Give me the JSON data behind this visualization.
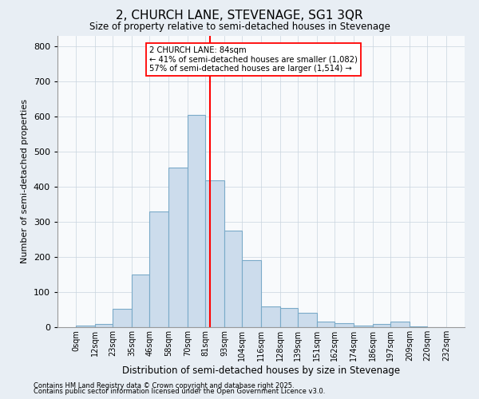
{
  "title": "2, CHURCH LANE, STEVENAGE, SG1 3QR",
  "subtitle": "Size of property relative to semi-detached houses in Stevenage",
  "xlabel": "Distribution of semi-detached houses by size in Stevenage",
  "ylabel": "Number of semi-detached properties",
  "bar_color": "#ccdcec",
  "bar_edge_color": "#7aaac8",
  "vline_value": 84,
  "vline_color": "red",
  "annotation_title": "2 CHURCH LANE: 84sqm",
  "annotation_line1": "← 41% of semi-detached houses are smaller (1,082)",
  "annotation_line2": "57% of semi-detached houses are larger (1,514) →",
  "bin_edges": [
    0,
    12,
    23,
    35,
    46,
    58,
    70,
    81,
    93,
    104,
    116,
    128,
    139,
    151,
    162,
    174,
    186,
    197,
    209,
    220,
    232
  ],
  "bar_heights": [
    5,
    10,
    52,
    150,
    330,
    455,
    605,
    418,
    275,
    190,
    60,
    55,
    40,
    15,
    12,
    5,
    10,
    15,
    2,
    1
  ],
  "ylim": [
    0,
    830
  ],
  "yticks": [
    0,
    100,
    200,
    300,
    400,
    500,
    600,
    700,
    800
  ],
  "tick_labels": [
    "0sqm",
    "12sqm",
    "23sqm",
    "35sqm",
    "46sqm",
    "58sqm",
    "70sqm",
    "81sqm",
    "93sqm",
    "104sqm",
    "116sqm",
    "128sqm",
    "139sqm",
    "151sqm",
    "162sqm",
    "174sqm",
    "186sqm",
    "197sqm",
    "209sqm",
    "220sqm",
    "232sqm"
  ],
  "footnote1": "Contains HM Land Registry data © Crown copyright and database right 2025.",
  "footnote2": "Contains public sector information licensed under the Open Government Licence v3.0.",
  "bg_color": "#e8eef4",
  "plot_bg_color": "#f8fafc",
  "grid_color": "#c8d4de"
}
